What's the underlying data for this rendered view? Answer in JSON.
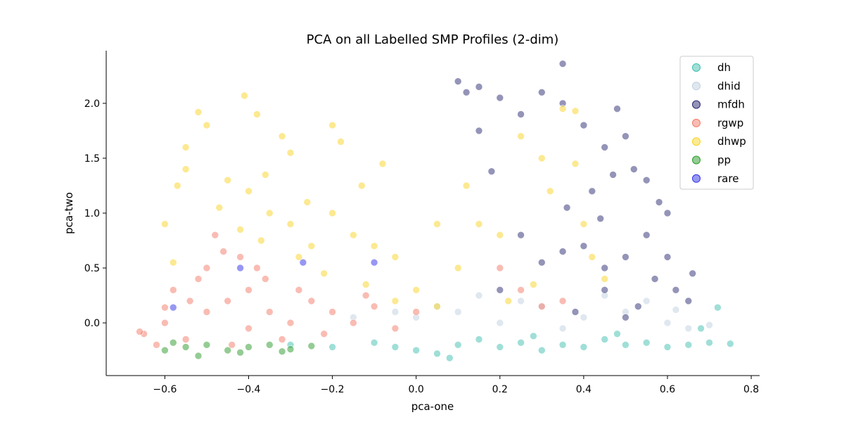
{
  "chart_data": {
    "type": "scatter",
    "title": "PCA on all Labelled SMP Profiles (2-dim)",
    "xlabel": "pca-one",
    "ylabel": "pca-two",
    "xlim": [
      -0.74,
      0.82
    ],
    "ylim": [
      -0.48,
      2.48
    ],
    "xticks": [
      -0.6,
      -0.4,
      -0.2,
      0.0,
      0.2,
      0.4,
      0.6,
      0.8
    ],
    "xtick_labels": [
      "−0.6",
      "−0.4",
      "−0.2",
      "0.0",
      "0.2",
      "0.4",
      "0.6",
      "0.8"
    ],
    "yticks": [
      0.0,
      0.5,
      1.0,
      1.5,
      2.0
    ],
    "ytick_labels": [
      "0.0",
      "0.5",
      "1.0",
      "1.5",
      "2.0"
    ],
    "grid": false,
    "legend_position": "top-right",
    "point_alpha": 0.5,
    "series": [
      {
        "name": "dh",
        "color": "#40c0b0",
        "points": [
          [
            -0.05,
            -0.22
          ],
          [
            0.0,
            -0.25
          ],
          [
            0.05,
            -0.28
          ],
          [
            0.1,
            -0.2
          ],
          [
            0.15,
            -0.15
          ],
          [
            0.2,
            -0.22
          ],
          [
            0.25,
            -0.18
          ],
          [
            0.3,
            -0.25
          ],
          [
            0.35,
            -0.2
          ],
          [
            0.4,
            -0.22
          ],
          [
            0.45,
            -0.15
          ],
          [
            0.5,
            -0.2
          ],
          [
            0.55,
            -0.18
          ],
          [
            0.6,
            -0.22
          ],
          [
            0.65,
            -0.2
          ],
          [
            0.7,
            -0.18
          ],
          [
            0.75,
            -0.19
          ],
          [
            0.72,
            0.14
          ],
          [
            0.68,
            -0.05
          ],
          [
            -0.1,
            -0.18
          ],
          [
            -0.2,
            -0.22
          ],
          [
            -0.3,
            -0.2
          ],
          [
            0.08,
            -0.32
          ],
          [
            0.28,
            -0.12
          ],
          [
            0.48,
            -0.1
          ]
        ]
      },
      {
        "name": "dhid",
        "color": "#c0d0e0",
        "points": [
          [
            0.0,
            0.05
          ],
          [
            0.1,
            0.1
          ],
          [
            0.2,
            0.0
          ],
          [
            0.3,
            0.15
          ],
          [
            0.4,
            0.05
          ],
          [
            0.5,
            0.1
          ],
          [
            0.6,
            0.0
          ],
          [
            0.65,
            -0.05
          ],
          [
            0.55,
            0.2
          ],
          [
            0.45,
            0.25
          ],
          [
            0.35,
            -0.05
          ],
          [
            0.25,
            0.2
          ],
          [
            0.15,
            0.25
          ],
          [
            0.05,
            0.15
          ],
          [
            -0.05,
            0.1
          ],
          [
            -0.15,
            0.05
          ],
          [
            0.7,
            -0.02
          ],
          [
            0.62,
            0.12
          ]
        ]
      },
      {
        "name": "mfdh",
        "color": "#2a2a72",
        "points": [
          [
            0.1,
            2.2
          ],
          [
            0.12,
            2.1
          ],
          [
            0.15,
            2.15
          ],
          [
            0.2,
            2.05
          ],
          [
            0.25,
            1.9
          ],
          [
            0.3,
            2.1
          ],
          [
            0.35,
            2.36
          ],
          [
            0.35,
            2.0
          ],
          [
            0.4,
            1.8
          ],
          [
            0.45,
            1.6
          ],
          [
            0.48,
            1.95
          ],
          [
            0.5,
            1.7
          ],
          [
            0.52,
            1.4
          ],
          [
            0.55,
            1.3
          ],
          [
            0.58,
            1.1
          ],
          [
            0.6,
            1.0
          ],
          [
            0.55,
            0.8
          ],
          [
            0.5,
            0.6
          ],
          [
            0.45,
            0.5
          ],
          [
            0.4,
            0.7
          ],
          [
            0.35,
            0.65
          ],
          [
            0.42,
            1.2
          ],
          [
            0.47,
            1.35
          ],
          [
            0.57,
            0.4
          ],
          [
            0.62,
            0.3
          ],
          [
            0.65,
            0.2
          ],
          [
            0.53,
            0.15
          ],
          [
            0.45,
            0.3
          ],
          [
            0.3,
            0.55
          ],
          [
            0.25,
            0.8
          ],
          [
            0.2,
            0.3
          ],
          [
            0.15,
            1.75
          ],
          [
            0.18,
            1.38
          ],
          [
            0.6,
            0.6
          ],
          [
            0.66,
            0.45
          ],
          [
            0.38,
            0.1
          ],
          [
            0.5,
            0.05
          ],
          [
            0.44,
            0.95
          ],
          [
            0.36,
            1.05
          ]
        ]
      },
      {
        "name": "rgwp",
        "color": "#f47a68",
        "points": [
          [
            -0.65,
            -0.1
          ],
          [
            -0.6,
            0.0
          ],
          [
            -0.55,
            -0.15
          ],
          [
            -0.5,
            0.1
          ],
          [
            -0.45,
            0.2
          ],
          [
            -0.4,
            0.3
          ],
          [
            -0.35,
            0.1
          ],
          [
            -0.3,
            0.0
          ],
          [
            -0.25,
            0.2
          ],
          [
            -0.2,
            0.1
          ],
          [
            -0.15,
            0.0
          ],
          [
            -0.1,
            0.15
          ],
          [
            -0.05,
            -0.05
          ],
          [
            0.0,
            0.1
          ],
          [
            -0.48,
            0.8
          ],
          [
            -0.42,
            0.6
          ],
          [
            -0.38,
            0.5
          ],
          [
            -0.52,
            0.4
          ],
          [
            -0.58,
            0.3
          ],
          [
            -0.62,
            -0.2
          ],
          [
            -0.44,
            -0.2
          ],
          [
            -0.32,
            -0.15
          ],
          [
            -0.22,
            -0.1
          ],
          [
            -0.5,
            0.5
          ],
          [
            -0.46,
            0.65
          ],
          [
            -0.36,
            0.4
          ],
          [
            -0.28,
            0.3
          ],
          [
            -0.12,
            0.25
          ],
          [
            0.2,
            0.5
          ],
          [
            0.25,
            0.3
          ],
          [
            0.3,
            0.15
          ],
          [
            0.35,
            0.2
          ],
          [
            -0.54,
            0.2
          ],
          [
            -0.4,
            -0.05
          ],
          [
            -0.6,
            0.14
          ],
          [
            -0.66,
            -0.08
          ]
        ]
      },
      {
        "name": "dhwp",
        "color": "#f9d424",
        "points": [
          [
            -0.55,
            1.6
          ],
          [
            -0.5,
            1.8
          ],
          [
            -0.45,
            1.3
          ],
          [
            -0.4,
            1.2
          ],
          [
            -0.35,
            1.0
          ],
          [
            -0.3,
            0.9
          ],
          [
            -0.25,
            0.7
          ],
          [
            -0.2,
            1.0
          ],
          [
            -0.15,
            0.8
          ],
          [
            -0.1,
            0.7
          ],
          [
            -0.05,
            0.6
          ],
          [
            0.0,
            0.3
          ],
          [
            -0.41,
            2.07
          ],
          [
            -0.38,
            1.9
          ],
          [
            -0.32,
            1.7
          ],
          [
            -0.3,
            1.55
          ],
          [
            -0.2,
            1.8
          ],
          [
            -0.18,
            1.65
          ],
          [
            -0.08,
            1.45
          ],
          [
            -0.13,
            1.25
          ],
          [
            -0.55,
            1.4
          ],
          [
            -0.57,
            1.25
          ],
          [
            -0.47,
            1.05
          ],
          [
            -0.42,
            0.85
          ],
          [
            -0.37,
            0.75
          ],
          [
            -0.28,
            0.6
          ],
          [
            -0.22,
            0.45
          ],
          [
            -0.12,
            0.35
          ],
          [
            -0.05,
            0.2
          ],
          [
            0.05,
            0.15
          ],
          [
            0.1,
            0.5
          ],
          [
            0.12,
            1.25
          ],
          [
            0.15,
            0.9
          ],
          [
            0.2,
            0.8
          ],
          [
            0.25,
            1.7
          ],
          [
            0.3,
            1.5
          ],
          [
            0.35,
            1.95
          ],
          [
            0.32,
            1.2
          ],
          [
            0.38,
            1.45
          ],
          [
            0.4,
            0.9
          ],
          [
            0.42,
            0.6
          ],
          [
            0.45,
            0.4
          ],
          [
            0.28,
            0.35
          ],
          [
            0.22,
            0.2
          ],
          [
            -0.6,
            0.9
          ],
          [
            -0.58,
            0.55
          ],
          [
            -0.52,
            1.92
          ],
          [
            -0.36,
            1.35
          ],
          [
            -0.26,
            1.1
          ],
          [
            0.05,
            0.9
          ],
          [
            0.38,
            1.93
          ]
        ]
      },
      {
        "name": "pp",
        "color": "#2a9a2a",
        "points": [
          [
            -0.6,
            -0.25
          ],
          [
            -0.55,
            -0.22
          ],
          [
            -0.5,
            -0.2
          ],
          [
            -0.45,
            -0.25
          ],
          [
            -0.4,
            -0.22
          ],
          [
            -0.35,
            -0.2
          ],
          [
            -0.3,
            -0.24
          ],
          [
            -0.25,
            -0.21
          ],
          [
            -0.52,
            -0.3
          ],
          [
            -0.42,
            -0.27
          ],
          [
            -0.32,
            -0.26
          ],
          [
            -0.58,
            -0.18
          ]
        ]
      },
      {
        "name": "rare",
        "color": "#3030e8",
        "points": [
          [
            -0.27,
            0.55
          ],
          [
            -0.42,
            0.5
          ],
          [
            -0.58,
            0.14
          ],
          [
            -0.1,
            0.55
          ]
        ]
      }
    ]
  }
}
